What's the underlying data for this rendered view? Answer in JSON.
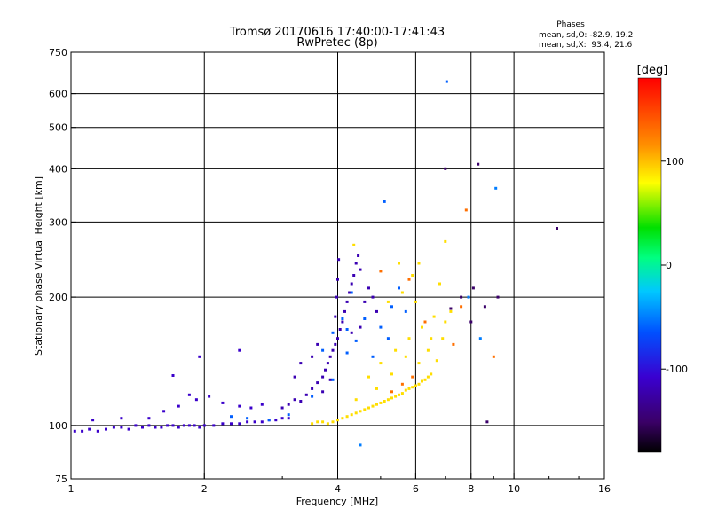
{
  "chart_data": {
    "type": "scatter",
    "title": "Tromsø 20170616 17:40:00-17:41:43",
    "subtitle": "RwPretec (8p)",
    "xlabel": "Frequency [MHz]",
    "ylabel": "Stationary phase Virtual Height [km]",
    "x_scale": "log",
    "y_scale": "log",
    "xlim": [
      1,
      16
    ],
    "ylim": [
      75,
      750
    ],
    "x_ticks": [
      1,
      2,
      4,
      6,
      8,
      10,
      16
    ],
    "x_grid": [
      2,
      4,
      6,
      8,
      10
    ],
    "y_ticks": [
      75,
      100,
      200,
      300,
      400,
      500,
      600,
      750
    ],
    "y_grid": [
      100,
      200,
      300,
      400,
      500,
      600
    ],
    "grid": true,
    "phase_stats": {
      "heading": "Phases",
      "line_o": "mean, sd,O: -82.9, 19.2",
      "line_x": "mean, sd,X:  93.4, 21.6"
    },
    "colorbar": {
      "label": "[deg]",
      "range": [
        -180,
        180
      ],
      "ticks": [
        100,
        0,
        -100
      ],
      "tick_labels": [
        "100",
        "0",
        "-100"
      ],
      "position": "right"
    },
    "series": [
      {
        "trace": "low-freq O-mode trace",
        "phase": -110,
        "points": [
          [
            1.02,
            97
          ],
          [
            1.06,
            97
          ],
          [
            1.1,
            98
          ],
          [
            1.15,
            97
          ],
          [
            1.2,
            98
          ],
          [
            1.25,
            99
          ],
          [
            1.3,
            99
          ],
          [
            1.35,
            98
          ],
          [
            1.4,
            100
          ],
          [
            1.45,
            99
          ],
          [
            1.5,
            100
          ],
          [
            1.55,
            99
          ],
          [
            1.6,
            99
          ],
          [
            1.65,
            100
          ],
          [
            1.7,
            100
          ],
          [
            1.75,
            99
          ],
          [
            1.8,
            100
          ],
          [
            1.85,
            100
          ],
          [
            1.9,
            100
          ],
          [
            1.95,
            99
          ],
          [
            2.0,
            100
          ],
          [
            2.1,
            100
          ],
          [
            2.2,
            101
          ],
          [
            2.3,
            101
          ],
          [
            2.4,
            101
          ],
          [
            2.5,
            102
          ],
          [
            2.6,
            102
          ],
          [
            2.7,
            102
          ],
          [
            2.8,
            103
          ],
          [
            2.9,
            103
          ],
          [
            3.0,
            104
          ],
          [
            3.1,
            104
          ],
          [
            1.12,
            103
          ],
          [
            1.3,
            104
          ],
          [
            1.5,
            104
          ],
          [
            1.62,
            108
          ],
          [
            1.75,
            111
          ],
          [
            1.85,
            118
          ],
          [
            1.92,
            115
          ],
          [
            2.05,
            117
          ],
          [
            2.2,
            113
          ],
          [
            2.4,
            111
          ],
          [
            2.55,
            110
          ],
          [
            2.7,
            112
          ],
          [
            1.95,
            145
          ],
          [
            2.4,
            150
          ],
          [
            1.7,
            131
          ]
        ]
      },
      {
        "trace": "upper O-mode trace",
        "phase": -120,
        "points": [
          [
            3.0,
            110
          ],
          [
            3.1,
            112
          ],
          [
            3.2,
            115
          ],
          [
            3.3,
            114
          ],
          [
            3.4,
            118
          ],
          [
            3.5,
            122
          ],
          [
            3.6,
            126
          ],
          [
            3.7,
            130
          ],
          [
            3.75,
            135
          ],
          [
            3.8,
            140
          ],
          [
            3.85,
            145
          ],
          [
            3.9,
            150
          ],
          [
            3.95,
            155
          ],
          [
            4.0,
            160
          ],
          [
            4.05,
            168
          ],
          [
            4.1,
            175
          ],
          [
            4.15,
            185
          ],
          [
            4.2,
            195
          ],
          [
            4.25,
            205
          ],
          [
            4.3,
            215
          ],
          [
            4.35,
            225
          ],
          [
            4.4,
            240
          ],
          [
            4.45,
            250
          ],
          [
            4.5,
            232
          ],
          [
            3.95,
            180
          ],
          [
            3.98,
            200
          ],
          [
            4.0,
            220
          ],
          [
            4.02,
            245
          ],
          [
            3.5,
            145
          ],
          [
            3.6,
            155
          ],
          [
            3.3,
            140
          ],
          [
            3.2,
            130
          ],
          [
            4.6,
            195
          ],
          [
            4.7,
            210
          ],
          [
            4.8,
            200
          ],
          [
            4.9,
            185
          ],
          [
            4.5,
            170
          ],
          [
            4.3,
            165
          ],
          [
            3.85,
            128
          ],
          [
            3.7,
            120
          ]
        ]
      },
      {
        "trace": "cyan O-mode points",
        "phase": -60,
        "points": [
          [
            2.3,
            105
          ],
          [
            2.5,
            104
          ],
          [
            2.8,
            103
          ],
          [
            3.1,
            106
          ],
          [
            3.5,
            117
          ],
          [
            3.9,
            128
          ],
          [
            4.2,
            148
          ],
          [
            4.4,
            158
          ],
          [
            5.0,
            170
          ],
          [
            5.3,
            190
          ],
          [
            5.5,
            210
          ],
          [
            5.7,
            185
          ],
          [
            5.2,
            160
          ],
          [
            4.8,
            145
          ],
          [
            3.7,
            150
          ],
          [
            3.9,
            165
          ],
          [
            4.1,
            178
          ],
          [
            4.3,
            205
          ],
          [
            4.2,
            168
          ],
          [
            4.6,
            178
          ],
          [
            5.1,
            335
          ],
          [
            7.05,
            640
          ]
        ]
      },
      {
        "trace": "X-mode trace",
        "phase": 90,
        "points": [
          [
            3.5,
            101
          ],
          [
            3.6,
            102
          ],
          [
            3.7,
            102
          ],
          [
            3.8,
            101
          ],
          [
            3.9,
            102
          ],
          [
            4.0,
            103
          ],
          [
            4.1,
            104
          ],
          [
            4.2,
            105
          ],
          [
            4.3,
            106
          ],
          [
            4.4,
            107
          ],
          [
            4.5,
            108
          ],
          [
            4.6,
            109
          ],
          [
            4.7,
            110
          ],
          [
            4.8,
            111
          ],
          [
            4.9,
            112
          ],
          [
            5.0,
            113
          ],
          [
            5.1,
            114
          ],
          [
            5.2,
            115
          ],
          [
            5.3,
            116
          ],
          [
            5.4,
            117
          ],
          [
            5.5,
            118
          ],
          [
            5.6,
            119
          ],
          [
            5.7,
            121
          ],
          [
            5.8,
            122
          ],
          [
            5.9,
            123
          ],
          [
            6.0,
            124
          ],
          [
            6.1,
            125
          ],
          [
            6.2,
            127
          ],
          [
            6.3,
            128
          ],
          [
            6.4,
            130
          ],
          [
            6.5,
            132
          ],
          [
            5.0,
            140
          ],
          [
            5.4,
            150
          ],
          [
            5.8,
            160
          ],
          [
            6.2,
            170
          ],
          [
            6.6,
            180
          ],
          [
            5.2,
            195
          ],
          [
            5.6,
            205
          ],
          [
            5.9,
            225
          ],
          [
            6.0,
            195
          ],
          [
            6.4,
            150
          ],
          [
            6.7,
            142
          ],
          [
            6.9,
            160
          ],
          [
            7.0,
            175
          ],
          [
            7.2,
            185
          ],
          [
            6.8,
            215
          ],
          [
            4.7,
            130
          ],
          [
            4.4,
            115
          ],
          [
            4.9,
            122
          ],
          [
            5.3,
            132
          ],
          [
            5.7,
            145
          ],
          [
            6.1,
            140
          ],
          [
            6.5,
            160
          ],
          [
            7.0,
            270
          ],
          [
            6.1,
            240
          ],
          [
            4.35,
            265
          ],
          [
            5.5,
            240
          ]
        ]
      },
      {
        "trace": "X-mode warm points",
        "phase": 130,
        "points": [
          [
            5.3,
            120
          ],
          [
            5.6,
            125
          ],
          [
            5.9,
            130
          ],
          [
            5.0,
            230
          ],
          [
            5.8,
            220
          ],
          [
            7.6,
            190
          ],
          [
            7.8,
            320
          ],
          [
            9.0,
            145
          ],
          [
            7.3,
            155
          ],
          [
            6.3,
            175
          ]
        ]
      },
      {
        "trace": "scattered outliers",
        "phase": -150,
        "points": [
          [
            7.0,
            400
          ],
          [
            8.3,
            410
          ],
          [
            12.5,
            290
          ],
          [
            8.1,
            210
          ],
          [
            8.6,
            190
          ],
          [
            9.2,
            200
          ],
          [
            7.6,
            200
          ],
          [
            8.7,
            102
          ],
          [
            7.2,
            188
          ],
          [
            8.0,
            175
          ]
        ]
      },
      {
        "trace": "cyan outliers",
        "phase": -50,
        "points": [
          [
            9.1,
            360
          ],
          [
            4.5,
            90
          ],
          [
            7.9,
            200
          ],
          [
            8.4,
            160
          ]
        ]
      }
    ]
  }
}
